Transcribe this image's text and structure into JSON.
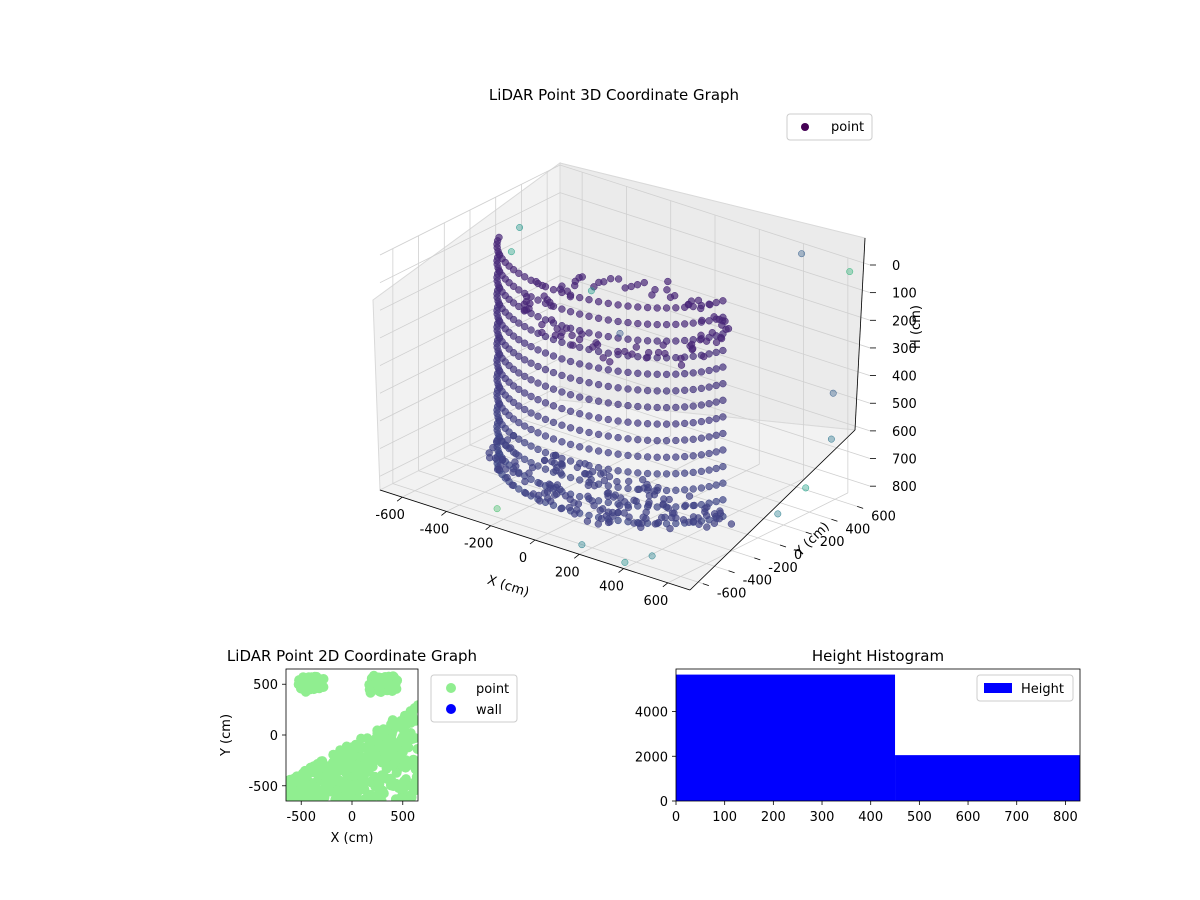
{
  "chart_data": [
    {
      "type": "scatter",
      "title": "LiDAR Point 3D Coordinate Graph",
      "xlabel": "X (cm)",
      "ylabel": "Y (cm)",
      "zlabel": "H (cm)",
      "xlim": [
        -700,
        700
      ],
      "ylim": [
        -700,
        700
      ],
      "zlim": [
        0,
        850
      ],
      "z_inverted": true,
      "x_ticks": [
        "-600",
        "-400",
        "-200",
        "0",
        "200",
        "400",
        "600"
      ],
      "y_ticks": [
        "-600",
        "-400",
        "-200",
        "0",
        "200",
        "400",
        "600"
      ],
      "z_ticks": [
        "0",
        "100",
        "200",
        "300",
        "400",
        "500",
        "600",
        "700",
        "800"
      ],
      "grid": true,
      "legend": {
        "position": "upper-right",
        "entries": [
          "point"
        ]
      },
      "series": [
        {
          "name": "point",
          "colormap": "viridis",
          "color": "#440154",
          "structures": [
            {
              "shape": "curved-wall",
              "angle_from_deg": 200,
              "angle_to_deg": 350,
              "radius": 500,
              "height_from": 0,
              "height_to": 830
            },
            {
              "shape": "ring-top",
              "angle_from_deg": 0,
              "angle_to_deg": 360,
              "radius": 420,
              "height": 210
            },
            {
              "shape": "floor",
              "angle_from_deg": 180,
              "angle_to_deg": 360,
              "radius": 550,
              "height": 800
            }
          ],
          "outliers": [
            {
              "x": -650,
              "y": 300,
              "z": 120
            },
            {
              "x": -600,
              "y": 150,
              "z": 160
            },
            {
              "x": 420,
              "y": 650,
              "z": 20
            },
            {
              "x": 620,
              "y": 680,
              "z": 40
            },
            {
              "x": 650,
              "y": 500,
              "z": 430
            },
            {
              "x": 700,
              "y": 400,
              "z": 560
            },
            {
              "x": 700,
              "y": 200,
              "z": 690
            },
            {
              "x": 690,
              "y": 0,
              "z": 740
            },
            {
              "x": 500,
              "y": -650,
              "z": 790
            },
            {
              "x": -200,
              "y": -650,
              "z": 800
            },
            {
              "x": 200,
              "y": -680,
              "z": 820
            },
            {
              "x": 400,
              "y": -690,
              "z": 830
            },
            {
              "x": -500,
              "y": 600,
              "z": 380
            },
            {
              "x": -400,
              "y": 650,
              "z": 520
            }
          ]
        }
      ]
    },
    {
      "type": "scatter",
      "title": "LiDAR Point 2D Coordinate Graph",
      "xlabel": "X (cm)",
      "ylabel": "Y (cm)",
      "xlim": [
        -650,
        650
      ],
      "ylim": [
        -650,
        650
      ],
      "x_ticks": [
        "-500",
        "0",
        "500"
      ],
      "y_ticks": [
        "-500",
        "0",
        "500"
      ],
      "legend": {
        "position": "outside-right",
        "entries": [
          "point",
          "wall"
        ]
      },
      "series": [
        {
          "name": "point",
          "color": "#90ee90",
          "regions": [
            {
              "shape": "band",
              "x_from": -650,
              "x_to": 650,
              "y_from": -650,
              "y_to": 300
            },
            {
              "shape": "cluster",
              "x": -400,
              "y": 500,
              "spread": 250
            },
            {
              "shape": "cluster",
              "x": 300,
              "y": 500,
              "spread": 300
            }
          ]
        },
        {
          "name": "wall",
          "color": "#0000ff",
          "regions": []
        }
      ]
    },
    {
      "type": "bar",
      "title": "Height Histogram",
      "xlabel": "",
      "ylabel": "",
      "xlim": [
        0,
        830
      ],
      "ylim": [
        0,
        5900
      ],
      "x_ticks": [
        "0",
        "100",
        "200",
        "300",
        "400",
        "500",
        "600",
        "700",
        "800"
      ],
      "y_ticks": [
        "0",
        "2000",
        "4000"
      ],
      "legend": {
        "position": "upper-right",
        "entries": [
          "Height"
        ]
      },
      "series": [
        {
          "name": "Height",
          "color": "#0000ff",
          "bins": [
            {
              "from": 0,
              "to": 450,
              "count": 5650
            },
            {
              "from": 450,
              "to": 830,
              "count": 2050
            }
          ]
        }
      ]
    }
  ]
}
